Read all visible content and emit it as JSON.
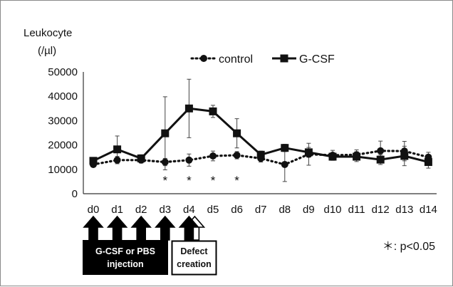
{
  "chart_data": {
    "type": "line",
    "ylabel_line1": "Leukocyte",
    "ylabel_line2": "(/µl)",
    "categories": [
      "d0",
      "d1",
      "d2",
      "d3",
      "d4",
      "d5",
      "d6",
      "d7",
      "d8",
      "d9",
      "d10",
      "d11",
      "d12",
      "d13",
      "d14"
    ],
    "ylim": [
      0,
      50000
    ],
    "yticks": [
      "0",
      "10000",
      "20000",
      "30000",
      "40000",
      "50000"
    ],
    "grid": false,
    "legend_position": "top",
    "series": [
      {
        "name": "control",
        "style": "dotted-circle",
        "color": "#111111",
        "values": [
          12000,
          13800,
          13800,
          13000,
          13800,
          15500,
          15800,
          14500,
          12000,
          16200,
          15800,
          16000,
          17600,
          17500,
          15000
        ],
        "err": [
          1000,
          1500,
          1200,
          1500,
          2500,
          2000,
          1500,
          1500,
          7000,
          4500,
          2000,
          2000,
          4000,
          4000,
          2000
        ]
      },
      {
        "name": "G-CSF",
        "style": "solid-square",
        "color": "#111111",
        "values": [
          13500,
          18200,
          14500,
          24800,
          35000,
          33800,
          24800,
          16000,
          18800,
          17000,
          15200,
          15200,
          14000,
          15500,
          13000
        ],
        "err": [
          1200,
          5500,
          1500,
          15000,
          12000,
          2500,
          6000,
          1500,
          1500,
          2000,
          1500,
          2000,
          2000,
          4000,
          2500
        ]
      }
    ],
    "significance_marker": "*",
    "significance_days": [
      "d3",
      "d4",
      "d5",
      "d6"
    ],
    "significance_note": "＊: p<0.05"
  },
  "annotations": {
    "injection_label_line1": "G-CSF or PBS",
    "injection_label_line2": "injection",
    "defect_label_line1": "Defect",
    "defect_label_line2": "creation",
    "injection_days": [
      "d0",
      "d1",
      "d2",
      "d3",
      "d4"
    ],
    "defect_day": "d4"
  }
}
